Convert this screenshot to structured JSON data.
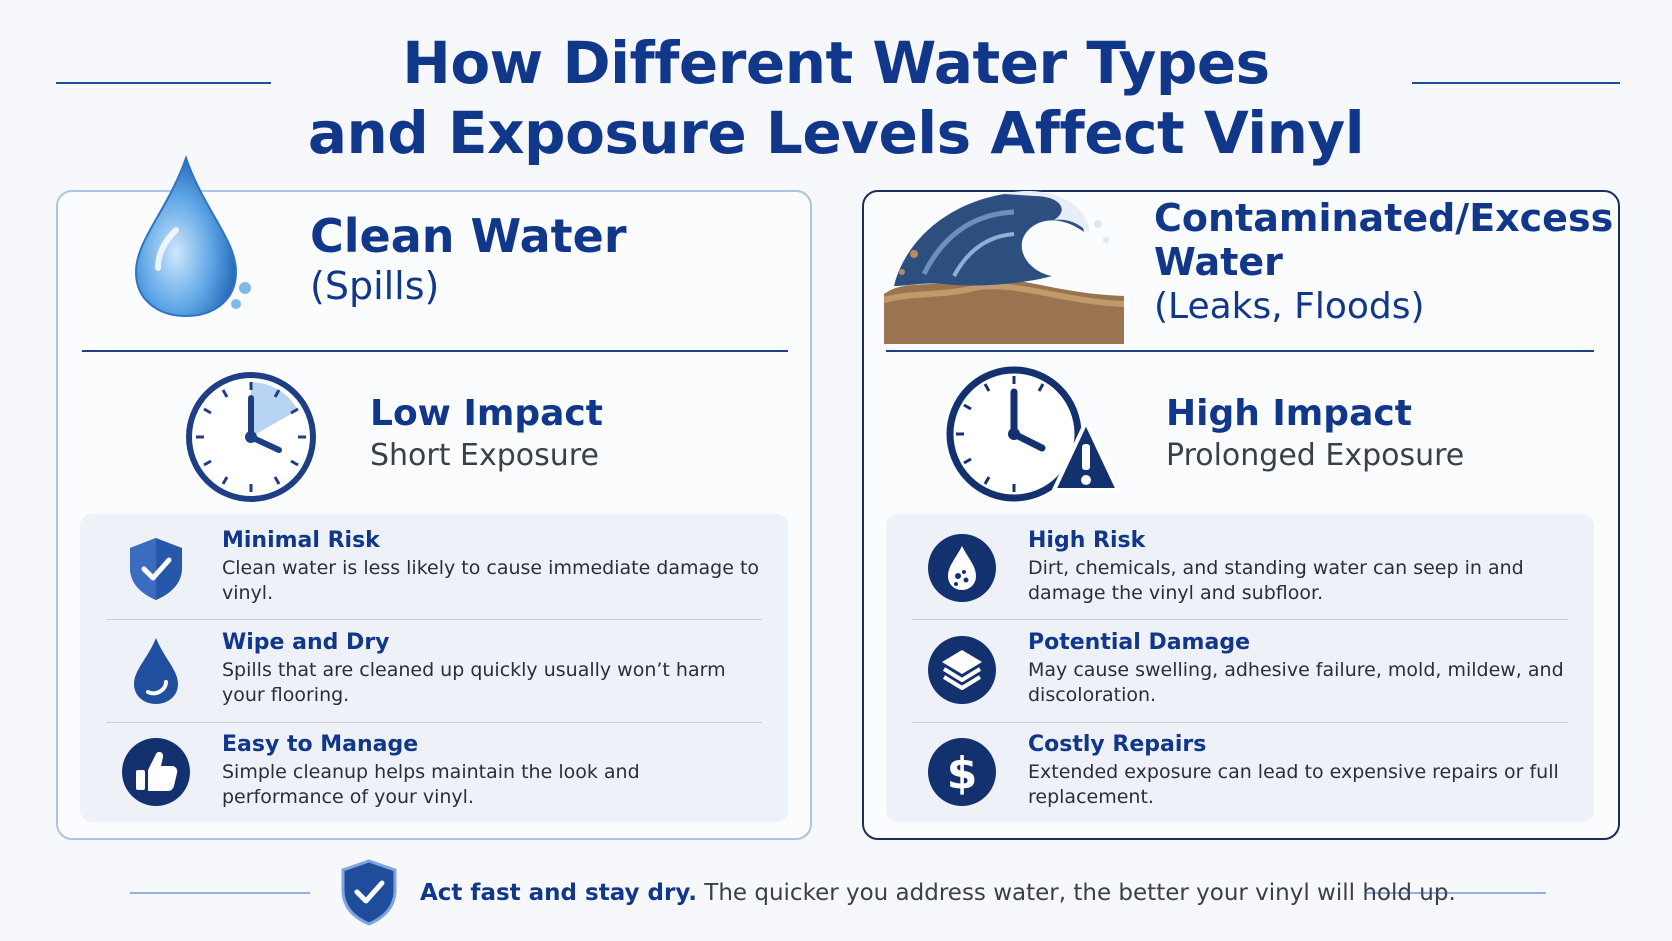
{
  "title": {
    "line1": "How Different Water Types",
    "line2": "and Exposure Levels Affect Vinyl"
  },
  "left_card": {
    "icon": "water-drop-icon",
    "heading": "Clean Water",
    "subheading": "(Spills)",
    "impact_icon": "clock-icon",
    "impact_title": "Low Impact",
    "impact_subtitle": "Short Exposure",
    "items": [
      {
        "icon": "shield-check-icon",
        "title": "Minimal Risk",
        "desc": "Clean water is less likely to cause immediate damage to vinyl."
      },
      {
        "icon": "droplet-icon",
        "title": "Wipe and Dry",
        "desc": "Spills that are cleaned up quickly usually won’t harm your flooring."
      },
      {
        "icon": "thumbs-up-icon",
        "title": "Easy to Manage",
        "desc": "Simple cleanup helps maintain the look and performance of your vinyl."
      }
    ]
  },
  "right_card": {
    "icon": "wave-icon",
    "heading_line1": "Contaminated/Excess",
    "heading_line2": "Water",
    "subheading": "(Leaks, Floods)",
    "impact_icon": "clock-warning-icon",
    "impact_title": "High Impact",
    "impact_subtitle": "Prolonged Exposure",
    "items": [
      {
        "icon": "dirty-drop-icon",
        "title": "High Risk",
        "desc": "Dirt, chemicals, and standing water can seep in and damage the vinyl and subfloor."
      },
      {
        "icon": "layers-icon",
        "title": "Potential Damage",
        "desc": "May cause swelling, adhesive failure, mold, mildew, and discoloration."
      },
      {
        "icon": "dollar-icon",
        "title": "Costly Repairs",
        "desc": "Extended exposure can lead to expensive repairs or full replacement."
      }
    ]
  },
  "footer": {
    "icon": "shield-check-icon",
    "bold": "Act fast and stay dry.",
    "text": " The quicker you address water, the better your vinyl will hold up."
  },
  "colors": {
    "navy": "#10378a",
    "dark_navy": "#1a2f5e",
    "light_blue": "#a9c4e6",
    "panel_bg": "#eef2f8"
  }
}
